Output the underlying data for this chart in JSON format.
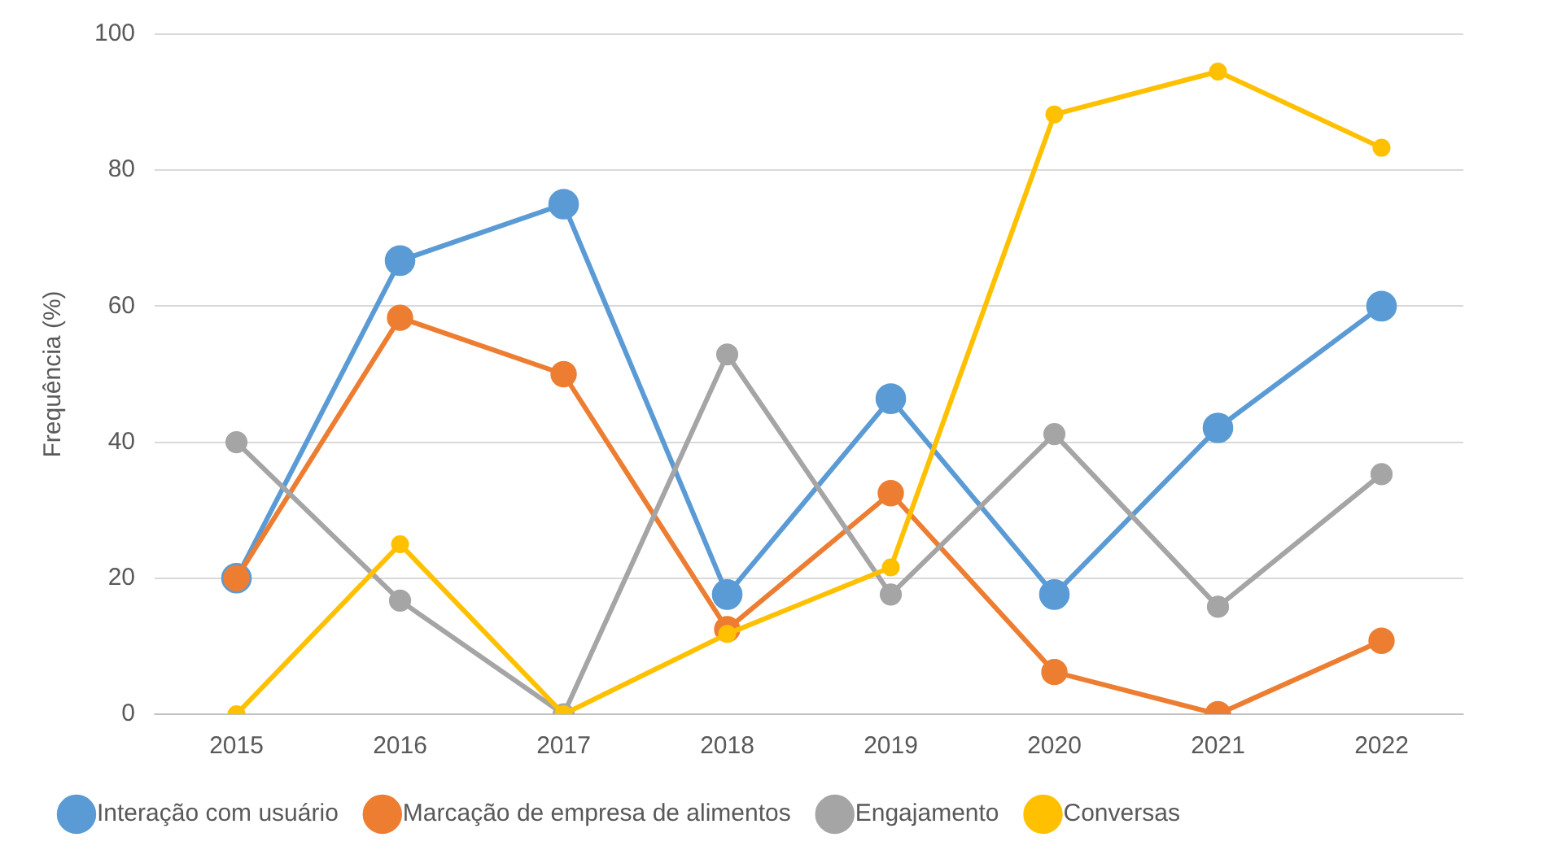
{
  "chart_data": {
    "type": "line",
    "ylabel": "Frequência (%)",
    "categories": [
      "2015",
      "2016",
      "2017",
      "2018",
      "2019",
      "2020",
      "2021",
      "2022"
    ],
    "series": [
      {
        "name": "Interação com usuário",
        "color": "#5b9bd5",
        "values": [
          20,
          66.7,
          75,
          17.6,
          46.4,
          17.6,
          42.1,
          60
        ]
      },
      {
        "name": "Marcação de empresa de alimentos",
        "color": "#ed7d31",
        "values": [
          20,
          58.3,
          50,
          12.5,
          32.5,
          6.2,
          0,
          10.8
        ]
      },
      {
        "name": "Engajamento",
        "color": "#a5a5a5",
        "values": [
          40,
          16.7,
          0,
          52.9,
          17.6,
          41.2,
          15.8,
          35.3
        ]
      },
      {
        "name": "Conversas",
        "color": "#ffc000",
        "values": [
          0,
          25,
          0,
          11.8,
          21.6,
          88.2,
          94.5,
          83.3
        ]
      }
    ],
    "ylim": [
      0,
      100
    ],
    "yticks": [
      0,
      20,
      40,
      60,
      80,
      100
    ],
    "grid": "y",
    "legend": "bottom",
    "marker": "circle",
    "line_style": "solid"
  }
}
